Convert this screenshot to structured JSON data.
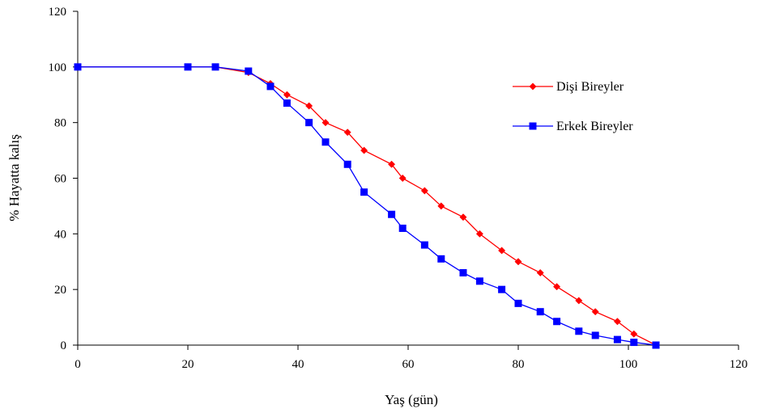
{
  "chart_data": {
    "type": "line",
    "title": "",
    "xlabel": "Yaş (gün)",
    "ylabel": "% Hayatta kalış",
    "xlim": [
      0,
      120
    ],
    "ylim": [
      0,
      120
    ],
    "xticks": [
      0,
      20,
      40,
      60,
      80,
      100,
      120
    ],
    "yticks": [
      0,
      20,
      40,
      60,
      80,
      100,
      120
    ],
    "grid": false,
    "legend_position": "right",
    "series": [
      {
        "name": "Dişi Bireyler",
        "color": "#ff0000",
        "marker": "diamond",
        "x": [
          0,
          20,
          25,
          31,
          35,
          38,
          42,
          45,
          49,
          52,
          57,
          59,
          63,
          66,
          70,
          73,
          77,
          80,
          84,
          87,
          91,
          94,
          98,
          101,
          105
        ],
        "y": [
          100,
          100,
          100,
          98,
          94,
          90,
          86,
          80,
          76.5,
          70,
          65,
          60,
          55.5,
          50,
          46,
          40,
          34,
          30,
          26,
          21,
          16,
          12,
          8.5,
          4,
          0
        ]
      },
      {
        "name": "Erkek Bireyler",
        "color": "#0000ff",
        "marker": "square",
        "x": [
          0,
          20,
          25,
          31,
          35,
          38,
          42,
          45,
          49,
          52,
          57,
          59,
          63,
          66,
          70,
          73,
          77,
          80,
          84,
          87,
          91,
          94,
          98,
          101,
          105
        ],
        "y": [
          100,
          100,
          100,
          98.5,
          93,
          87,
          80,
          73,
          65,
          55,
          47,
          42,
          36,
          31,
          26,
          23,
          20,
          15,
          12,
          8.5,
          5,
          3.5,
          2,
          1,
          0
        ]
      }
    ]
  }
}
